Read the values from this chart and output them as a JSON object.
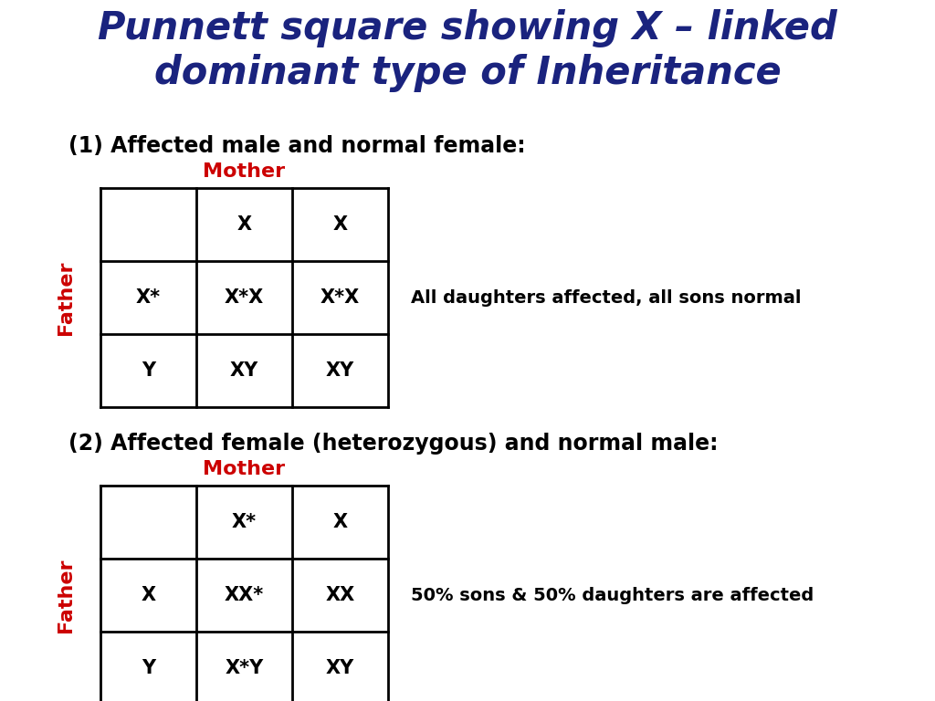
{
  "title_line1": "Punnett square showing X – linked",
  "title_line2": "dominant type of Inheritance",
  "title_color": "#1a237e",
  "title_fontsize": 30,
  "section1_label": "(1) Affected male and normal female:",
  "section2_label": "(2) Affected female (heterozygous) and normal male:",
  "section_fontsize": 17,
  "section_color": "#000000",
  "mother_label": "Mother",
  "father_label": "Father",
  "axis_label_color": "#cc0000",
  "axis_label_fontsize": 16,
  "table1": {
    "cells": [
      [
        "",
        "X",
        "X"
      ],
      [
        "X*",
        "X*X",
        "X*X"
      ],
      [
        "Y",
        "XY",
        "XY"
      ]
    ],
    "note": "All daughters affected, all sons normal"
  },
  "table2": {
    "cells": [
      [
        "",
        "X*",
        "X"
      ],
      [
        "X",
        "XX*",
        "XX"
      ],
      [
        "Y",
        "X*Y",
        "XY"
      ]
    ],
    "note": "50% sons & 50% daughters are affected"
  },
  "cell_fontsize": 15,
  "note_fontsize": 14,
  "background_color": "#ffffff",
  "fig_width": 10.24,
  "fig_height": 7.68,
  "dpi": 100
}
